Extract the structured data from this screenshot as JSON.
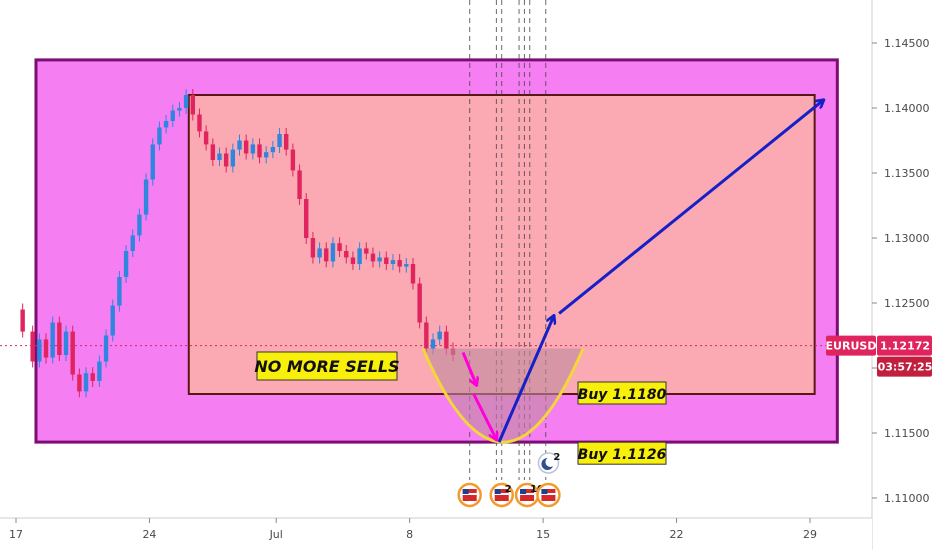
{
  "chart_data": {
    "type": "candlestick",
    "symbol": "EURUSD",
    "last_price": 1.12172,
    "last_price_label": "1.12172",
    "countdown": "03:57:25",
    "ylim": [
      1.1095,
      1.1495
    ],
    "xlim": [
      -1,
      63
    ],
    "y_ticks": [
      "1.14500",
      "1.14000",
      "1.13500",
      "1.13000",
      "1.12500",
      "1.12000",
      "1.11500",
      "1.11000"
    ],
    "y_tick_values": [
      1.145,
      1.14,
      1.135,
      1.13,
      1.125,
      1.12,
      1.115,
      1.11
    ],
    "x_ticks": [
      {
        "label": "17",
        "x": 0.5
      },
      {
        "label": "24",
        "x": 10.5
      },
      {
        "label": "Jul",
        "x": 20
      },
      {
        "label": "8",
        "x": 30
      },
      {
        "label": "15",
        "x": 40
      },
      {
        "label": "22",
        "x": 50
      },
      {
        "label": "29",
        "x": 60
      }
    ],
    "price_path": [
      [
        -1,
        1.1245
      ],
      [
        0,
        1.1228
      ],
      [
        0.5,
        1.1205
      ],
      [
        1,
        1.1222
      ],
      [
        1.5,
        1.1208
      ],
      [
        2,
        1.1235
      ],
      [
        2.5,
        1.121
      ],
      [
        3,
        1.1228
      ],
      [
        3.5,
        1.1195
      ],
      [
        4,
        1.1182
      ],
      [
        4.5,
        1.1196
      ],
      [
        5,
        1.119
      ],
      [
        5.5,
        1.1205
      ],
      [
        6,
        1.1225
      ],
      [
        6.5,
        1.1248
      ],
      [
        7,
        1.127
      ],
      [
        7.5,
        1.129
      ],
      [
        8,
        1.1302
      ],
      [
        8.5,
        1.1318
      ],
      [
        9,
        1.1345
      ],
      [
        9.5,
        1.1372
      ],
      [
        10,
        1.1385
      ],
      [
        10.5,
        1.139
      ],
      [
        11,
        1.1398
      ],
      [
        11.5,
        1.14
      ],
      [
        12,
        1.141
      ],
      [
        12.5,
        1.1395
      ],
      [
        13,
        1.1382
      ],
      [
        13.5,
        1.1372
      ],
      [
        14,
        1.136
      ],
      [
        14.5,
        1.1365
      ],
      [
        15,
        1.1355
      ],
      [
        15.5,
        1.1368
      ],
      [
        16,
        1.1375
      ],
      [
        16.5,
        1.1365
      ],
      [
        17,
        1.1372
      ],
      [
        17.5,
        1.1362
      ],
      [
        18,
        1.1366
      ],
      [
        18.5,
        1.137
      ],
      [
        19,
        1.138
      ],
      [
        19.5,
        1.1368
      ],
      [
        20,
        1.1352
      ],
      [
        20.5,
        1.133
      ],
      [
        21,
        1.13
      ],
      [
        21.5,
        1.1285
      ],
      [
        22,
        1.1292
      ],
      [
        22.5,
        1.1282
      ],
      [
        23,
        1.1296
      ],
      [
        23.5,
        1.129
      ],
      [
        24,
        1.1285
      ],
      [
        24.5,
        1.128
      ],
      [
        25,
        1.1292
      ],
      [
        25.5,
        1.1288
      ],
      [
        26,
        1.1282
      ],
      [
        26.5,
        1.1285
      ],
      [
        27,
        1.128
      ],
      [
        27.5,
        1.1283
      ],
      [
        28,
        1.1278
      ],
      [
        28.5,
        1.128
      ],
      [
        29,
        1.1265
      ],
      [
        29.5,
        1.1235
      ],
      [
        30,
        1.1215
      ],
      [
        30.5,
        1.1222
      ],
      [
        31,
        1.1228
      ],
      [
        31.5,
        1.1215
      ],
      [
        32,
        1.121
      ]
    ],
    "outer_range_box": {
      "x": [
        -1,
        59.5
      ],
      "y": [
        1.1143,
        1.1437
      ],
      "label": ""
    },
    "inner_range_box": {
      "x": [
        11.5,
        57.5
      ],
      "y": [
        1.118,
        1.141
      ],
      "label": ""
    },
    "annotations": {
      "no_more_sells": "NO MORE SELLS",
      "buy_1": "Buy 1.1180",
      "buy_2": "Buy 1.1126"
    },
    "buy_1_price": 1.118,
    "buy_2_price": 1.1126,
    "forecast_arrows": [
      {
        "color": "#ff00dd",
        "from": [
          32.5,
          1.1212
        ],
        "to": [
          33.5,
          1.1187
        ]
      },
      {
        "color": "#ff00dd",
        "from": [
          33.3,
          1.118
        ],
        "to": [
          35,
          1.1145
        ]
      },
      {
        "color": "#1520c8",
        "from": [
          35.2,
          1.1143
        ],
        "to": [
          39.3,
          1.124
        ]
      },
      {
        "color": "#1520c8",
        "from": [
          39.7,
          1.1242
        ],
        "to": [
          59.5,
          1.1406
        ]
      }
    ],
    "bowl": {
      "x": [
        29.5,
        41.5
      ],
      "top": 1.1215,
      "bottom": 1.1143
    },
    "event_lines_x": [
      33,
      35,
      35.4,
      36.7,
      37.1,
      37.5,
      38.7
    ],
    "events": [
      {
        "x": 33,
        "label": ""
      },
      {
        "x": 35.4,
        "label": "2"
      },
      {
        "x": 37.3,
        "label": "10"
      },
      {
        "x": 38.9,
        "label": ""
      }
    ],
    "moon_event": {
      "x": 38.9,
      "label": "2"
    },
    "colors": {
      "up": "#2e86de",
      "down": "#e0245e",
      "outer_fill": "#f57ef2",
      "outer_border": "#7b0d74",
      "inner_fill": "#fba9b3",
      "inner_border": "#5a1515",
      "symbol_badge": "#e0245e",
      "countdown_badge": "#c21e3e",
      "note_fill": "#f8f00a",
      "arrow_blue": "#1520c8",
      "arrow_magenta": "#ff00dd",
      "bowl_fill": "#c08a9c",
      "bowl_stroke": "#f2d63a"
    }
  }
}
